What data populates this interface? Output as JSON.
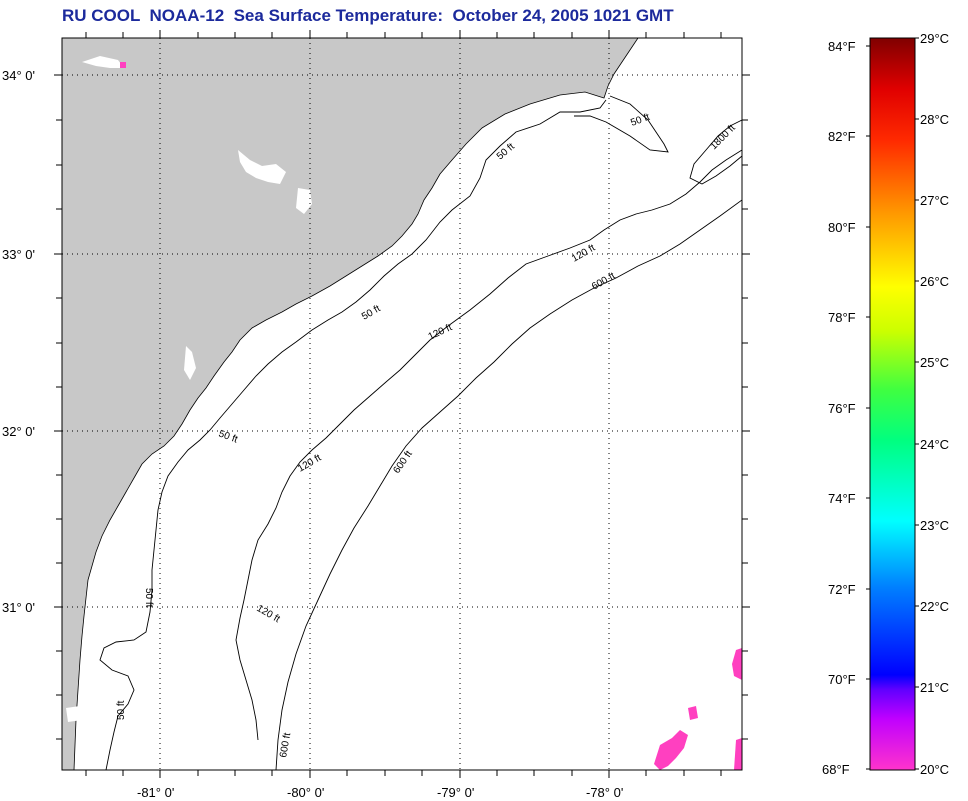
{
  "title": "RU COOL  NOAA-12  Sea Surface Temperature:  October 24, 2005 1021 GMT",
  "axes": {
    "lon_labels": [
      "-81° 0'",
      "-80° 0'",
      "-79° 0'",
      "-78° 0'"
    ],
    "lat_labels": [
      "34° 0'",
      "33° 0'",
      "32° 0'",
      "31° 0'"
    ]
  },
  "contour_labels": {
    "c50": "50 ft",
    "c120": "120 ft",
    "c600": "600 ft",
    "c1800": "1800 ft"
  },
  "colorbar": {
    "fahrenheit": [
      "84°F",
      "82°F",
      "80°F",
      "78°F",
      "76°F",
      "74°F",
      "72°F",
      "70°F",
      "68°F"
    ],
    "celsius": [
      "29°C",
      "28°C",
      "27°C",
      "26°C",
      "25°C",
      "24°C",
      "23°C",
      "22°C",
      "21°C",
      "20°C"
    ],
    "colors": [
      "#ff00ff",
      "#8000ff",
      "#0000ff",
      "#00a0ff",
      "#00ffff",
      "#00ff80",
      "#40ff00",
      "#c0ff00",
      "#ffff00",
      "#ffc000",
      "#ff8000",
      "#ff4000",
      "#ff0000",
      "#c00000",
      "#800000"
    ]
  },
  "colors": {
    "land": "#c8c8c8",
    "ocean": "#ffffff",
    "title": "#1c2a9c",
    "sst_patch": "#ff40c0"
  }
}
